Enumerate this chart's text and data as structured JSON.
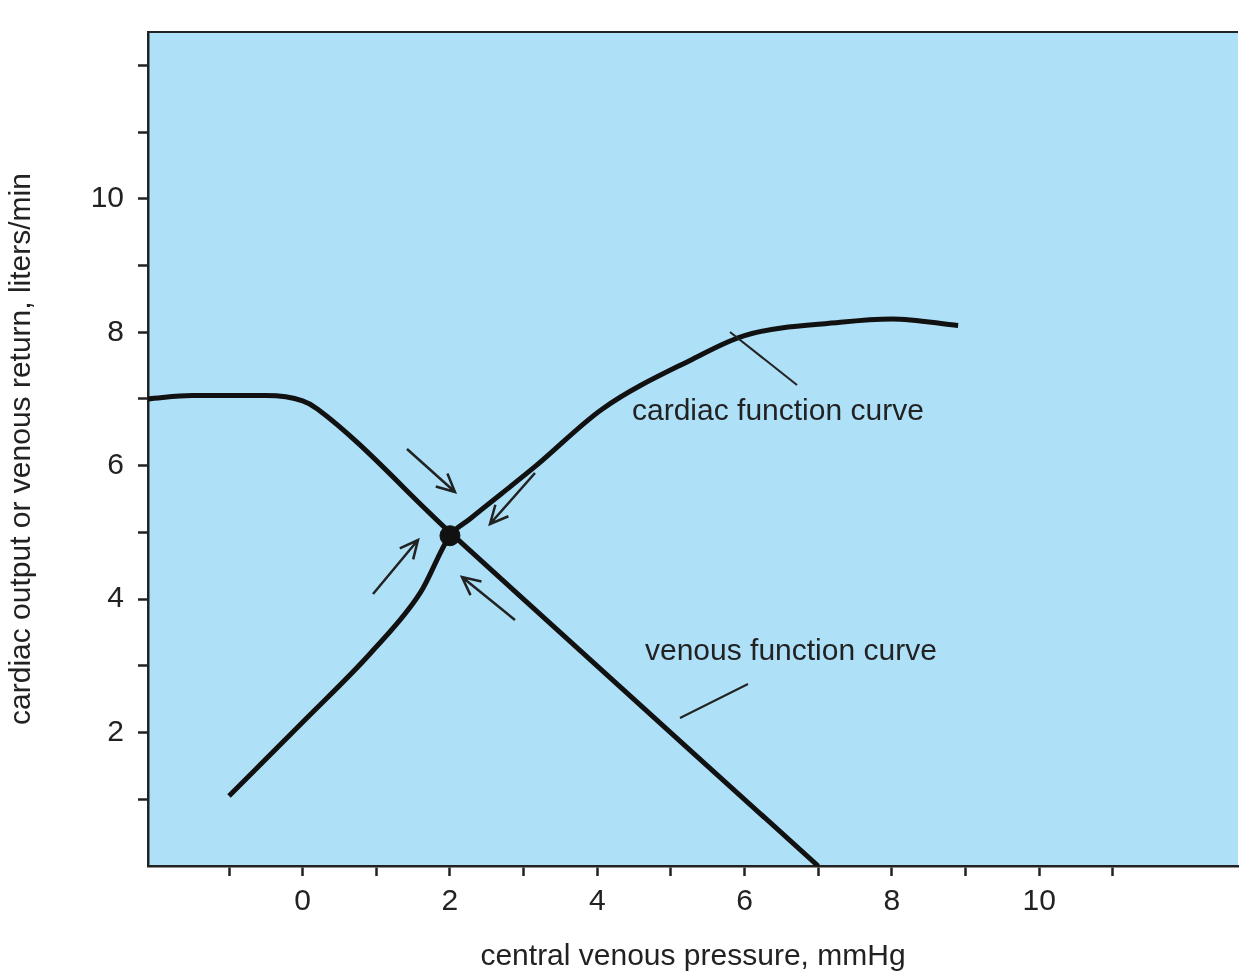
{
  "chart_data": {
    "type": "line",
    "xlabel": "central venous pressure, mmHg",
    "ylabel": "cardiac output or venous return, liters/min",
    "xlim": [
      -2.1,
      12.7
    ],
    "ylim": [
      0,
      12.5
    ],
    "xticks": [
      {
        "value": -1,
        "label": null
      },
      0,
      {
        "value": 1,
        "label": null
      },
      2,
      {
        "value": 3,
        "label": null
      },
      4,
      {
        "value": 5,
        "label": null
      },
      6,
      {
        "value": 7,
        "label": null
      },
      8,
      {
        "value": 9,
        "label": null
      },
      10,
      {
        "value": 11,
        "label": null
      }
    ],
    "yticks": [
      {
        "value": 1,
        "label": null
      },
      2,
      {
        "value": 3,
        "label": null
      },
      4,
      {
        "value": 5,
        "label": null
      },
      6,
      {
        "value": 7,
        "label": null
      },
      8,
      {
        "value": 9,
        "label": null
      },
      10,
      {
        "value": 11,
        "label": null
      },
      {
        "value": 12,
        "label": null
      }
    ],
    "grid": false,
    "legend": false,
    "line_style": "solid",
    "series": [
      {
        "name": "cardiac function curve",
        "color": "#111111",
        "x": [
          -1,
          0.04,
          0.93,
          1.6,
          2,
          2.27,
          3.17,
          4.07,
          5.3,
          6,
          7.3,
          8,
          8.9
        ],
        "values": [
          1.05,
          2.2,
          3.2,
          4.1,
          4.95,
          5.2,
          6,
          6.85,
          7.6,
          7.95,
          8.15,
          8.2,
          8.1
        ]
      },
      {
        "name": "venous function curve",
        "color": "#111111",
        "x": [
          -2.1,
          -1.5,
          -0.5,
          0,
          0.2,
          2,
          7
        ],
        "values": [
          7,
          7.05,
          7.05,
          6.97,
          6.85,
          5,
          0
        ]
      },
      {
        "type": "scatter",
        "marker": "circle",
        "color": "#111111",
        "x": [
          2
        ],
        "values": [
          4.95
        ]
      }
    ]
  }
}
